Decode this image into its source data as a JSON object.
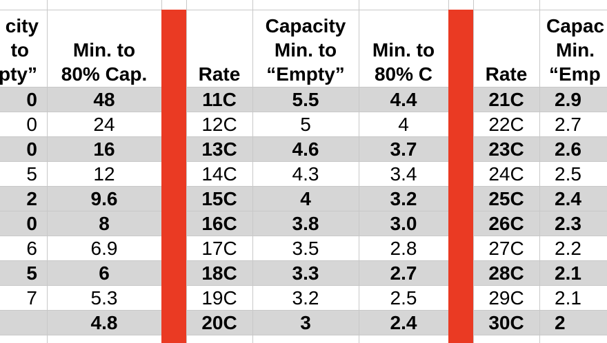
{
  "colors": {
    "shaded_row": "#d6d6d6",
    "divider_red": "#ea3a23",
    "grid": "#c8c8c8"
  },
  "headers": {
    "g1_capacity_top": "city",
    "g1_capacity_mid": "to",
    "g1_capacity_bot": "pty”",
    "g1_min80_mid": "Min. to",
    "g1_min80_bot": "80% Cap.",
    "g2_rate": "Rate",
    "g2_capacity_top": "Capacity",
    "g2_capacity_mid": "Min. to",
    "g2_capacity_bot": "“Empty”",
    "g2_min80_mid": "Min. to",
    "g2_min80_bot": "80% C",
    "g3_rate": "Rate",
    "g3_capacity_top": "Capac",
    "g3_capacity_mid": "Min.",
    "g3_capacity_bot": "“Emp"
  },
  "rows": [
    {
      "g1_cap": "0",
      "g1_min80": "48",
      "g2_rate": "11C",
      "g2_cap": "5.5",
      "g2_min80": "4.4",
      "g3_rate": "21C",
      "g3_cap": "2.9",
      "shaded": true
    },
    {
      "g1_cap": "0",
      "g1_min80": "24",
      "g2_rate": "12C",
      "g2_cap": "5",
      "g2_min80": "4",
      "g3_rate": "22C",
      "g3_cap": "2.7",
      "shaded": false
    },
    {
      "g1_cap": "0",
      "g1_min80": "16",
      "g2_rate": "13C",
      "g2_cap": "4.6",
      "g2_min80": "3.7",
      "g3_rate": "23C",
      "g3_cap": "2.6",
      "shaded": true
    },
    {
      "g1_cap": "5",
      "g1_min80": "12",
      "g2_rate": "14C",
      "g2_cap": "4.3",
      "g2_min80": "3.4",
      "g3_rate": "24C",
      "g3_cap": "2.5",
      "shaded": false
    },
    {
      "g1_cap": "2",
      "g1_min80": "9.6",
      "g2_rate": "15C",
      "g2_cap": "4",
      "g2_min80": "3.2",
      "g3_rate": "25C",
      "g3_cap": "2.4",
      "shaded": true
    },
    {
      "g1_cap": "0",
      "g1_min80": "8",
      "g2_rate": "16C",
      "g2_cap": "3.8",
      "g2_min80": "3.0",
      "g3_rate": "26C",
      "g3_cap": "2.3",
      "shaded": true
    },
    {
      "g1_cap": "6",
      "g1_min80": "6.9",
      "g2_rate": "17C",
      "g2_cap": "3.5",
      "g2_min80": "2.8",
      "g3_rate": "27C",
      "g3_cap": "2.2",
      "shaded": false
    },
    {
      "g1_cap": "5",
      "g1_min80": "6",
      "g2_rate": "18C",
      "g2_cap": "3.3",
      "g2_min80": "2.7",
      "g3_rate": "28C",
      "g3_cap": "2.1",
      "shaded": true
    },
    {
      "g1_cap": "7",
      "g1_min80": "5.3",
      "g2_rate": "19C",
      "g2_cap": "3.2",
      "g2_min80": "2.5",
      "g3_rate": "29C",
      "g3_cap": "2.1",
      "shaded": false
    },
    {
      "g1_cap": "",
      "g1_min80": "4.8",
      "g2_rate": "20C",
      "g2_cap": "3",
      "g2_min80": "2.4",
      "g3_rate": "30C",
      "g3_cap": "2",
      "shaded": true
    }
  ]
}
